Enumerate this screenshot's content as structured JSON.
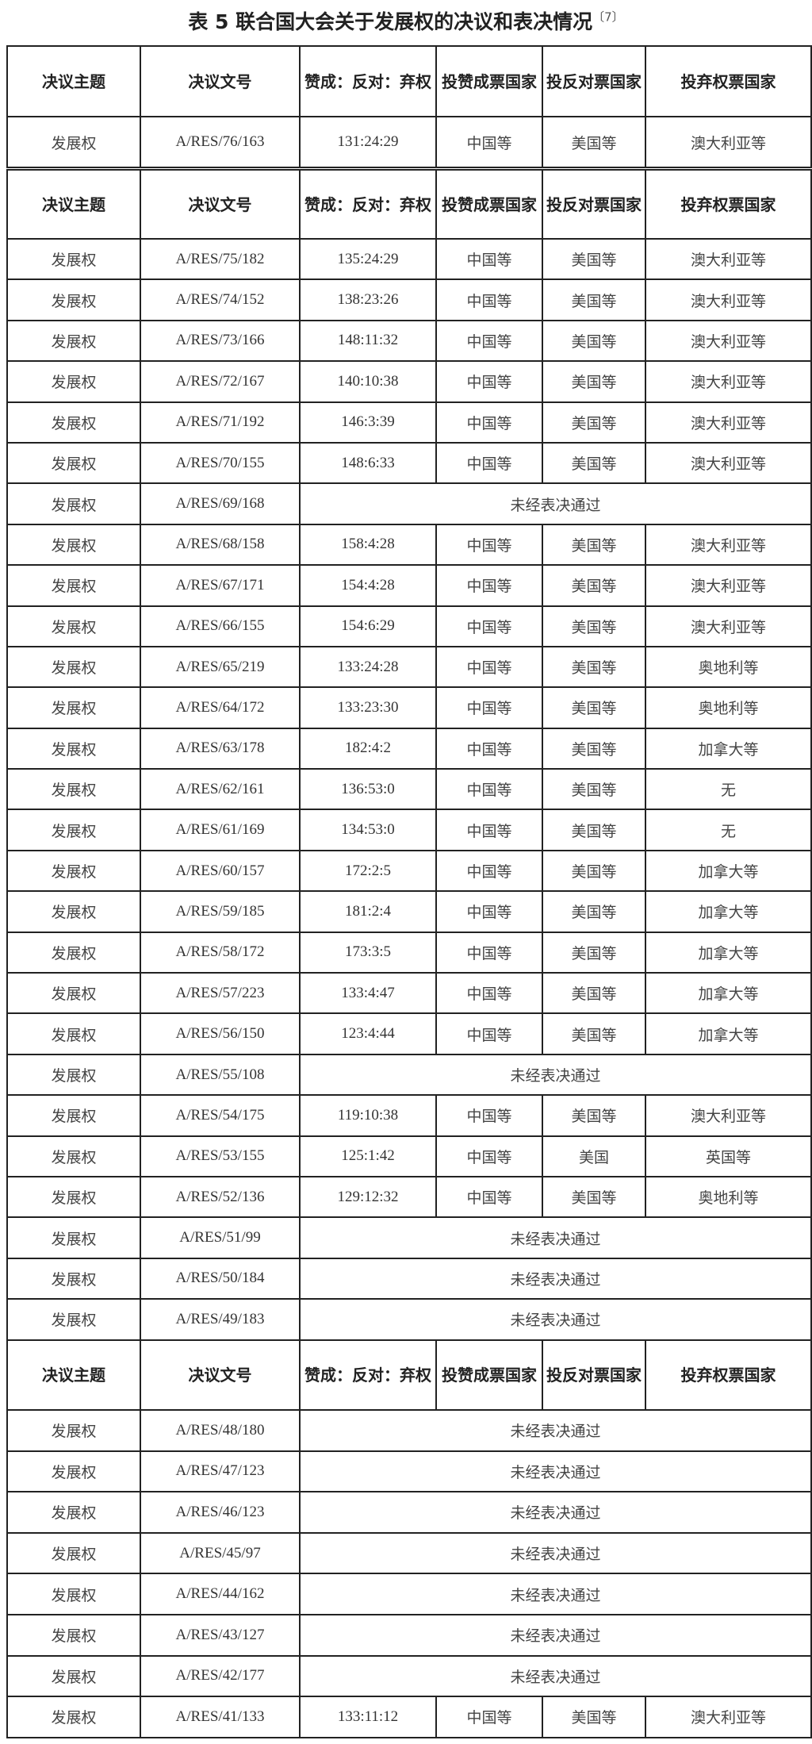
{
  "title": "表 5  联合国大会关于发展权的决议和表决情况",
  "citation": "〔7〕",
  "headers": [
    "决议主题",
    "决议文号",
    "赞成：反对：弃权",
    "投赞成票国家",
    "投反对票国家",
    "投弃权票国家"
  ],
  "not_voted_text": "未经表决通过",
  "tables": [
    {
      "rows": [
        {
          "topic": "发展权",
          "doc": "A/RES/76/163",
          "votes": "131:24:29",
          "yes": "中国等",
          "no": "美国等",
          "abstain": "澳大利亚等"
        }
      ]
    },
    {
      "rows": [
        {
          "topic": "发展权",
          "doc": "A/RES/75/182",
          "votes": "135:24:29",
          "yes": "中国等",
          "no": "美国等",
          "abstain": "澳大利亚等"
        },
        {
          "topic": "发展权",
          "doc": "A/RES/74/152",
          "votes": "138:23:26",
          "yes": "中国等",
          "no": "美国等",
          "abstain": "澳大利亚等"
        },
        {
          "topic": "发展权",
          "doc": "A/RES/73/166",
          "votes": "148:11:32",
          "yes": "中国等",
          "no": "美国等",
          "abstain": "澳大利亚等"
        },
        {
          "topic": "发展权",
          "doc": "A/RES/72/167",
          "votes": "140:10:38",
          "yes": "中国等",
          "no": "美国等",
          "abstain": "澳大利亚等"
        },
        {
          "topic": "发展权",
          "doc": "A/RES/71/192",
          "votes": "146:3:39",
          "yes": "中国等",
          "no": "美国等",
          "abstain": "澳大利亚等"
        },
        {
          "topic": "发展权",
          "doc": "A/RES/70/155",
          "votes": "148:6:33",
          "yes": "中国等",
          "no": "美国等",
          "abstain": "澳大利亚等"
        },
        {
          "topic": "发展权",
          "doc": "A/RES/69/168",
          "merged": "未经表决通过"
        },
        {
          "topic": "发展权",
          "doc": "A/RES/68/158",
          "votes": "158:4:28",
          "yes": "中国等",
          "no": "美国等",
          "abstain": "澳大利亚等"
        },
        {
          "topic": "发展权",
          "doc": "A/RES/67/171",
          "votes": "154:4:28",
          "yes": "中国等",
          "no": "美国等",
          "abstain": "澳大利亚等"
        },
        {
          "topic": "发展权",
          "doc": "A/RES/66/155",
          "votes": "154:6:29",
          "yes": "中国等",
          "no": "美国等",
          "abstain": "澳大利亚等"
        },
        {
          "topic": "发展权",
          "doc": "A/RES/65/219",
          "votes": "133:24:28",
          "yes": "中国等",
          "no": "美国等",
          "abstain": "奥地利等"
        },
        {
          "topic": "发展权",
          "doc": "A/RES/64/172",
          "votes": "133:23:30",
          "yes": "中国等",
          "no": "美国等",
          "abstain": "奥地利等"
        },
        {
          "topic": "发展权",
          "doc": "A/RES/63/178",
          "votes": "182:4:2",
          "yes": "中国等",
          "no": "美国等",
          "abstain": "加拿大等"
        },
        {
          "topic": "发展权",
          "doc": "A/RES/62/161",
          "votes": "136:53:0",
          "yes": "中国等",
          "no": "美国等",
          "abstain": "无"
        },
        {
          "topic": "发展权",
          "doc": "A/RES/61/169",
          "votes": "134:53:0",
          "yes": "中国等",
          "no": "美国等",
          "abstain": "无"
        },
        {
          "topic": "发展权",
          "doc": "A/RES/60/157",
          "votes": "172:2:5",
          "yes": "中国等",
          "no": "美国等",
          "abstain": "加拿大等"
        },
        {
          "topic": "发展权",
          "doc": "A/RES/59/185",
          "votes": "181:2:4",
          "yes": "中国等",
          "no": "美国等",
          "abstain": "加拿大等"
        },
        {
          "topic": "发展权",
          "doc": "A/RES/58/172",
          "votes": "173:3:5",
          "yes": "中国等",
          "no": "美国等",
          "abstain": "加拿大等"
        },
        {
          "topic": "发展权",
          "doc": "A/RES/57/223",
          "votes": "133:4:47",
          "yes": "中国等",
          "no": "美国等",
          "abstain": "加拿大等"
        },
        {
          "topic": "发展权",
          "doc": "A/RES/56/150",
          "votes": "123:4:44",
          "yes": "中国等",
          "no": "美国等",
          "abstain": "加拿大等"
        },
        {
          "topic": "发展权",
          "doc": "A/RES/55/108",
          "merged": "未经表决通过"
        },
        {
          "topic": "发展权",
          "doc": "A/RES/54/175",
          "votes": "119:10:38",
          "yes": "中国等",
          "no": "美国等",
          "abstain": "澳大利亚等"
        },
        {
          "topic": "发展权",
          "doc": "A/RES/53/155",
          "votes": "125:1:42",
          "yes": "中国等",
          "no": "美国",
          "abstain": "英国等"
        },
        {
          "topic": "发展权",
          "doc": "A/RES/52/136",
          "votes": "129:12:32",
          "yes": "中国等",
          "no": "美国等",
          "abstain": "奥地利等"
        },
        {
          "topic": "发展权",
          "doc": "A/RES/51/99",
          "merged": "未经表决通过"
        },
        {
          "topic": "发展权",
          "doc": "A/RES/50/184",
          "merged": "未经表决通过"
        },
        {
          "topic": "发展权",
          "doc": "A/RES/49/183",
          "merged": "未经表决通过"
        }
      ]
    },
    {
      "rows": [
        {
          "topic": "发展权",
          "doc": "A/RES/48/180",
          "merged": "未经表决通过"
        },
        {
          "topic": "发展权",
          "doc": "A/RES/47/123",
          "merged": "未经表决通过"
        },
        {
          "topic": "发展权",
          "doc": "A/RES/46/123",
          "merged": "未经表决通过"
        },
        {
          "topic": "发展权",
          "doc": "A/RES/45/97",
          "merged": "未经表决通过"
        },
        {
          "topic": "发展权",
          "doc": "A/RES/44/162",
          "merged": "未经表决通过"
        },
        {
          "topic": "发展权",
          "doc": "A/RES/43/127",
          "merged": "未经表决通过"
        },
        {
          "topic": "发展权",
          "doc": "A/RES/42/177",
          "merged": "未经表决通过"
        },
        {
          "topic": "发展权",
          "doc": "A/RES/41/133",
          "votes": "133:11:12",
          "yes": "中国等",
          "no": "美国等",
          "abstain": "澳大利亚等"
        }
      ]
    }
  ]
}
